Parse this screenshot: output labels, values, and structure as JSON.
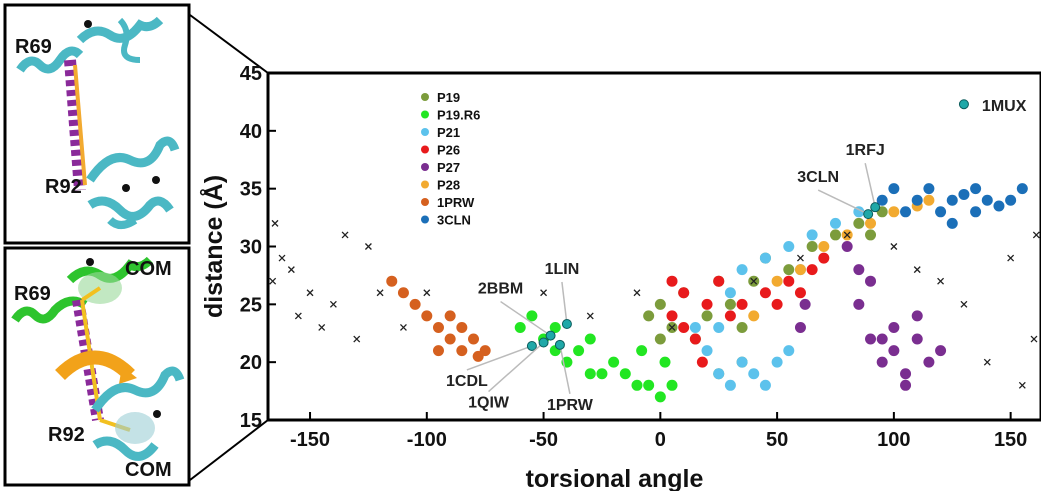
{
  "panels": [
    {
      "labels": [
        "R69",
        "R92"
      ]
    },
    {
      "labels": [
        "R69",
        "COM",
        "R92",
        "COM"
      ]
    }
  ],
  "chart_data": {
    "type": "scatter",
    "xlabel": "torsional angle",
    "ylabel": "distance (Å)",
    "xlim": [
      -168,
      163
    ],
    "ylim": [
      15,
      45
    ],
    "xticks": [
      -150,
      -100,
      -50,
      0,
      50,
      100,
      150
    ],
    "yticks": [
      15,
      20,
      25,
      30,
      35,
      40,
      45
    ],
    "legend": "upper left",
    "series": [
      {
        "name": "P19",
        "color": "#7c9c3c",
        "x": [
          0,
          5,
          10,
          15,
          20,
          25,
          30,
          35,
          40,
          45,
          55,
          65,
          75,
          85,
          90,
          95,
          25,
          35,
          -5,
          0
        ],
        "y": [
          25,
          23,
          26,
          22,
          24,
          27,
          25,
          23,
          27,
          29,
          28,
          30,
          31,
          32,
          31,
          33,
          19,
          20,
          24,
          22
        ]
      },
      {
        "name": "P19.R6",
        "color": "#22e622",
        "x": [
          -60,
          -55,
          -50,
          -45,
          -40,
          -35,
          -30,
          -25,
          -20,
          -15,
          -10,
          -5,
          0,
          2,
          -8,
          -45,
          -30,
          5
        ],
        "y": [
          23,
          24,
          22,
          21,
          20,
          21,
          22,
          19,
          20,
          19,
          18,
          18,
          17,
          20,
          21,
          23,
          19,
          18
        ]
      },
      {
        "name": "P21",
        "color": "#5cc2ec",
        "x": [
          20,
          25,
          30,
          35,
          40,
          45,
          50,
          55,
          25,
          35,
          45,
          55,
          65,
          75,
          85,
          15,
          30,
          60
        ],
        "y": [
          21,
          19,
          18,
          20,
          19,
          18,
          20,
          21,
          23,
          28,
          29,
          30,
          31,
          32,
          33,
          23,
          26,
          28
        ]
      },
      {
        "name": "P26",
        "color": "#e81a1c",
        "x": [
          5,
          10,
          15,
          10,
          20,
          25,
          30,
          35,
          45,
          50,
          55,
          60,
          65,
          70,
          5,
          18
        ],
        "y": [
          24,
          23,
          22,
          26,
          25,
          27,
          24,
          25,
          26,
          25,
          27,
          26,
          28,
          29,
          27,
          20
        ]
      },
      {
        "name": "P27",
        "color": "#7a2e90",
        "x": [
          60,
          62,
          80,
          85,
          90,
          85,
          90,
          95,
          100,
          105,
          110,
          115,
          100,
          105,
          95,
          120,
          110
        ],
        "y": [
          23,
          25,
          30,
          28,
          27,
          25,
          22,
          20,
          21,
          19,
          22,
          20,
          23,
          18,
          22,
          21,
          24
        ]
      },
      {
        "name": "P28",
        "color": "#f2aa30",
        "x": [
          40,
          50,
          60,
          70,
          80,
          90,
          100,
          110,
          115
        ],
        "y": [
          24,
          27,
          28,
          30,
          31,
          32,
          33,
          33.5,
          34
        ]
      },
      {
        "name": "1PRW",
        "color": "#d5601f",
        "x": [
          -115,
          -110,
          -105,
          -100,
          -95,
          -90,
          -85,
          -80,
          -75,
          -95,
          -85,
          -90,
          -78
        ],
        "y": [
          27,
          26,
          25,
          24,
          23,
          22,
          21,
          22,
          21,
          21,
          23,
          24,
          20.5
        ]
      },
      {
        "name": "3CLN",
        "color": "#1b6fb8",
        "x": [
          95,
          100,
          105,
          110,
          115,
          120,
          125,
          130,
          135,
          140,
          145,
          150,
          155,
          125,
          135
        ],
        "y": [
          34,
          35,
          33,
          34,
          35,
          33,
          34,
          34.5,
          33,
          34,
          33.5,
          34,
          35,
          32,
          35
        ]
      },
      {
        "color": "#222222",
        "marker": "x",
        "x": [
          -165,
          -162,
          -166,
          -158,
          -150,
          -145,
          -140,
          -135,
          -130,
          -125,
          -155,
          -120,
          -110,
          -100,
          -50,
          -30,
          -10,
          5,
          40,
          60,
          80,
          100,
          110,
          120,
          130,
          140,
          150,
          160,
          161,
          155
        ],
        "y": [
          32,
          29,
          27,
          28,
          26,
          23,
          25,
          31,
          22,
          30,
          24,
          26,
          23,
          26,
          26,
          24,
          26,
          23,
          27,
          29,
          31,
          30,
          28,
          27,
          25,
          20,
          29,
          22,
          31,
          18
        ]
      }
    ],
    "annotations": [
      {
        "text": "1MUX",
        "x": 130,
        "y": 42.3
      },
      {
        "text": "1RFJ",
        "x": 92,
        "y": 33.4
      },
      {
        "text": "3CLN",
        "x": 89,
        "y": 32.8
      },
      {
        "text": "2BBM",
        "x": -47,
        "y": 22.3
      },
      {
        "text": "1LIN",
        "x": -40,
        "y": 23.3
      },
      {
        "text": "1CDL",
        "x": -55,
        "y": 21.4
      },
      {
        "text": "1QIW",
        "x": -50,
        "y": 21.7
      },
      {
        "text": "1PRW",
        "x": -43,
        "y": 21.5
      }
    ]
  }
}
